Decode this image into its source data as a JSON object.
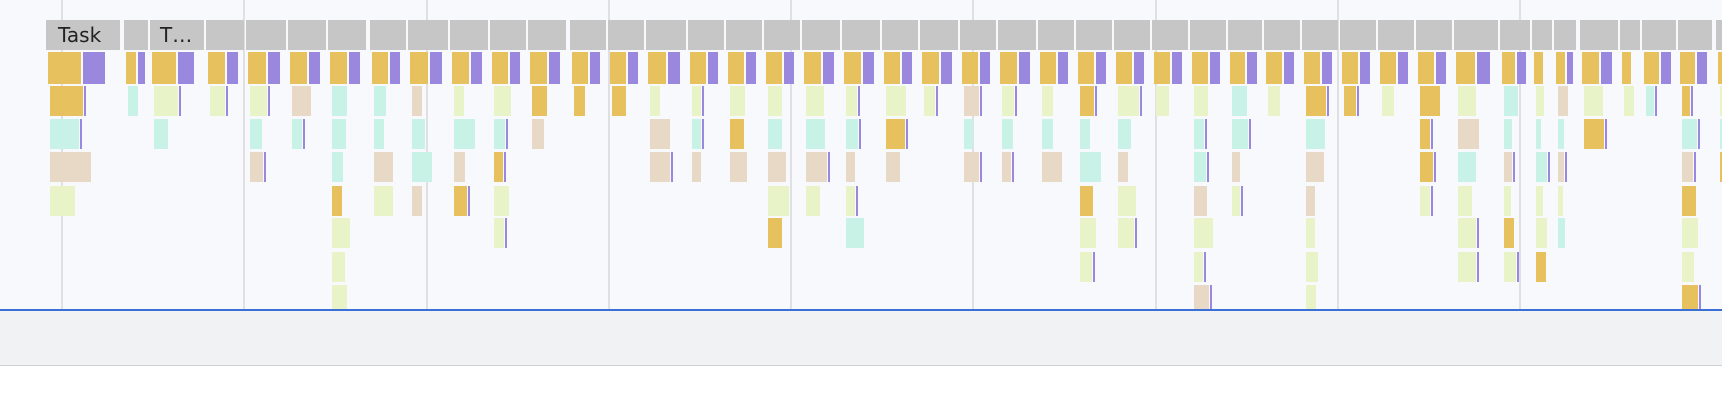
{
  "flame_chart": {
    "task_labels": [
      "Task",
      "T…"
    ],
    "colors": {
      "task": "#c6c6c6",
      "scripting": "#e8c15f",
      "function_call": "#9a87de",
      "event_light": "#e8f3c8",
      "timer": "#c9f2e6",
      "parse": "#e8d9c7",
      "grid": "#c8c8c8",
      "track_bg": "#f7f9fc",
      "divider": "#3a6fd8",
      "panel_bg": "#f1f2f4"
    }
  }
}
